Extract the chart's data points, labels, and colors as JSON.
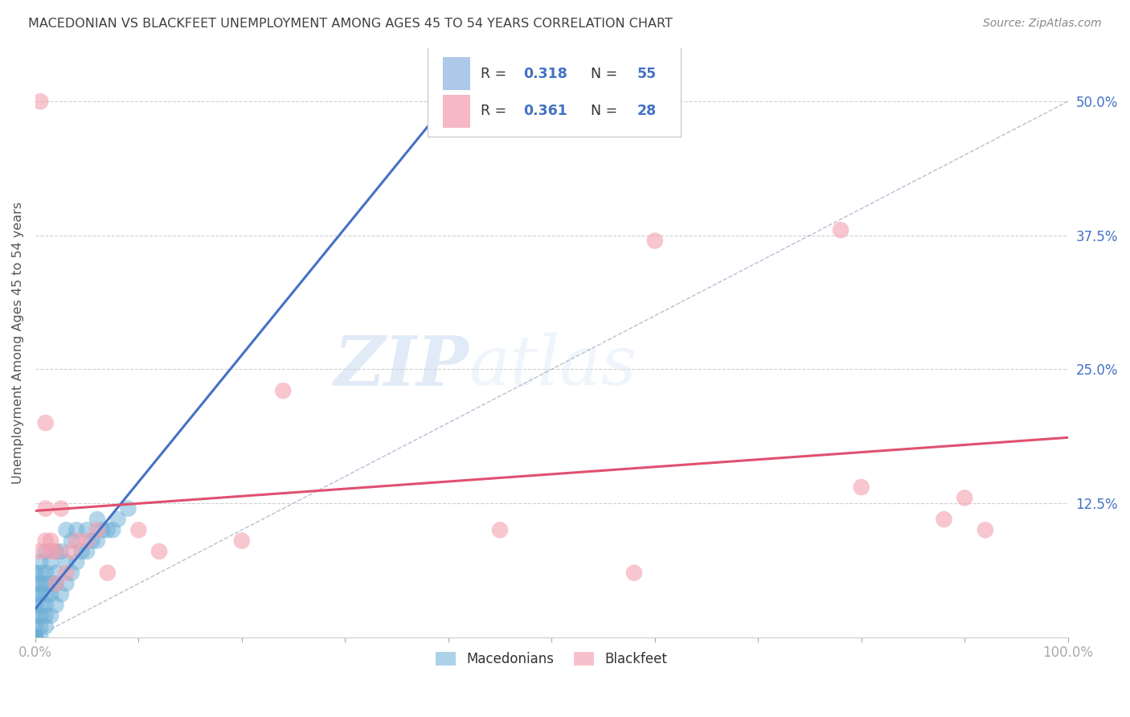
{
  "title": "MACEDONIAN VS BLACKFEET UNEMPLOYMENT AMONG AGES 45 TO 54 YEARS CORRELATION CHART",
  "source": "Source: ZipAtlas.com",
  "ylabel": "Unemployment Among Ages 45 to 54 years",
  "x_ticks": [
    0.0,
    0.1,
    0.2,
    0.3,
    0.4,
    0.5,
    0.6,
    0.7,
    0.8,
    0.9,
    1.0
  ],
  "x_tick_labels": [
    "0.0%",
    "",
    "",
    "",
    "",
    "",
    "",
    "",
    "",
    "",
    "100.0%"
  ],
  "y_ticks": [
    0.0,
    0.125,
    0.25,
    0.375,
    0.5
  ],
  "y_tick_labels": [
    "",
    "12.5%",
    "25.0%",
    "37.5%",
    "50.0%"
  ],
  "xlim": [
    0.0,
    1.0
  ],
  "ylim": [
    0.0,
    0.55
  ],
  "macedonian_color": "#6baed6",
  "blackfeet_color": "#f4a0b0",
  "macedonian_R": 0.318,
  "macedonian_N": 55,
  "blackfeet_R": 0.361,
  "blackfeet_N": 28,
  "legend_label_1": "Macedonians",
  "legend_label_2": "Blackfeet",
  "macedonian_x": [
    0.0,
    0.0,
    0.0,
    0.0,
    0.0,
    0.0,
    0.0,
    0.0,
    0.0,
    0.0,
    0.0,
    0.0,
    0.005,
    0.005,
    0.005,
    0.005,
    0.005,
    0.005,
    0.005,
    0.005,
    0.01,
    0.01,
    0.01,
    0.01,
    0.01,
    0.01,
    0.01,
    0.015,
    0.015,
    0.015,
    0.015,
    0.02,
    0.02,
    0.02,
    0.02,
    0.025,
    0.025,
    0.03,
    0.03,
    0.03,
    0.035,
    0.035,
    0.04,
    0.04,
    0.045,
    0.05,
    0.05,
    0.055,
    0.06,
    0.06,
    0.065,
    0.07,
    0.075,
    0.08,
    0.09
  ],
  "macedonian_y": [
    0.0,
    0.0,
    0.0,
    0.0,
    0.0,
    0.0,
    0.01,
    0.02,
    0.03,
    0.04,
    0.05,
    0.06,
    0.0,
    0.01,
    0.02,
    0.03,
    0.04,
    0.05,
    0.06,
    0.07,
    0.01,
    0.02,
    0.03,
    0.04,
    0.05,
    0.06,
    0.08,
    0.02,
    0.04,
    0.05,
    0.07,
    0.03,
    0.05,
    0.06,
    0.08,
    0.04,
    0.08,
    0.05,
    0.07,
    0.1,
    0.06,
    0.09,
    0.07,
    0.1,
    0.08,
    0.08,
    0.1,
    0.09,
    0.09,
    0.11,
    0.1,
    0.1,
    0.1,
    0.11,
    0.12
  ],
  "blackfeet_x": [
    0.005,
    0.005,
    0.01,
    0.01,
    0.01,
    0.015,
    0.015,
    0.02,
    0.02,
    0.025,
    0.03,
    0.035,
    0.04,
    0.05,
    0.06,
    0.07,
    0.1,
    0.12,
    0.2,
    0.24,
    0.45,
    0.58,
    0.6,
    0.78,
    0.8,
    0.88,
    0.9,
    0.92
  ],
  "blackfeet_y": [
    0.5,
    0.08,
    0.09,
    0.12,
    0.2,
    0.08,
    0.09,
    0.05,
    0.08,
    0.12,
    0.06,
    0.08,
    0.09,
    0.09,
    0.1,
    0.06,
    0.1,
    0.08,
    0.09,
    0.23,
    0.1,
    0.06,
    0.37,
    0.38,
    0.14,
    0.11,
    0.13,
    0.1
  ],
  "watermark_zip": "ZIP",
  "watermark_atlas": "atlas",
  "grid_color": "#d0d0d0",
  "background_color": "#ffffff",
  "tick_color": "#4472c4",
  "title_color": "#404040",
  "ylabel_color": "#555555",
  "mac_line_color": "#4472c4",
  "blk_line_color": "#e05070",
  "diag_line_color": "#9999bb"
}
